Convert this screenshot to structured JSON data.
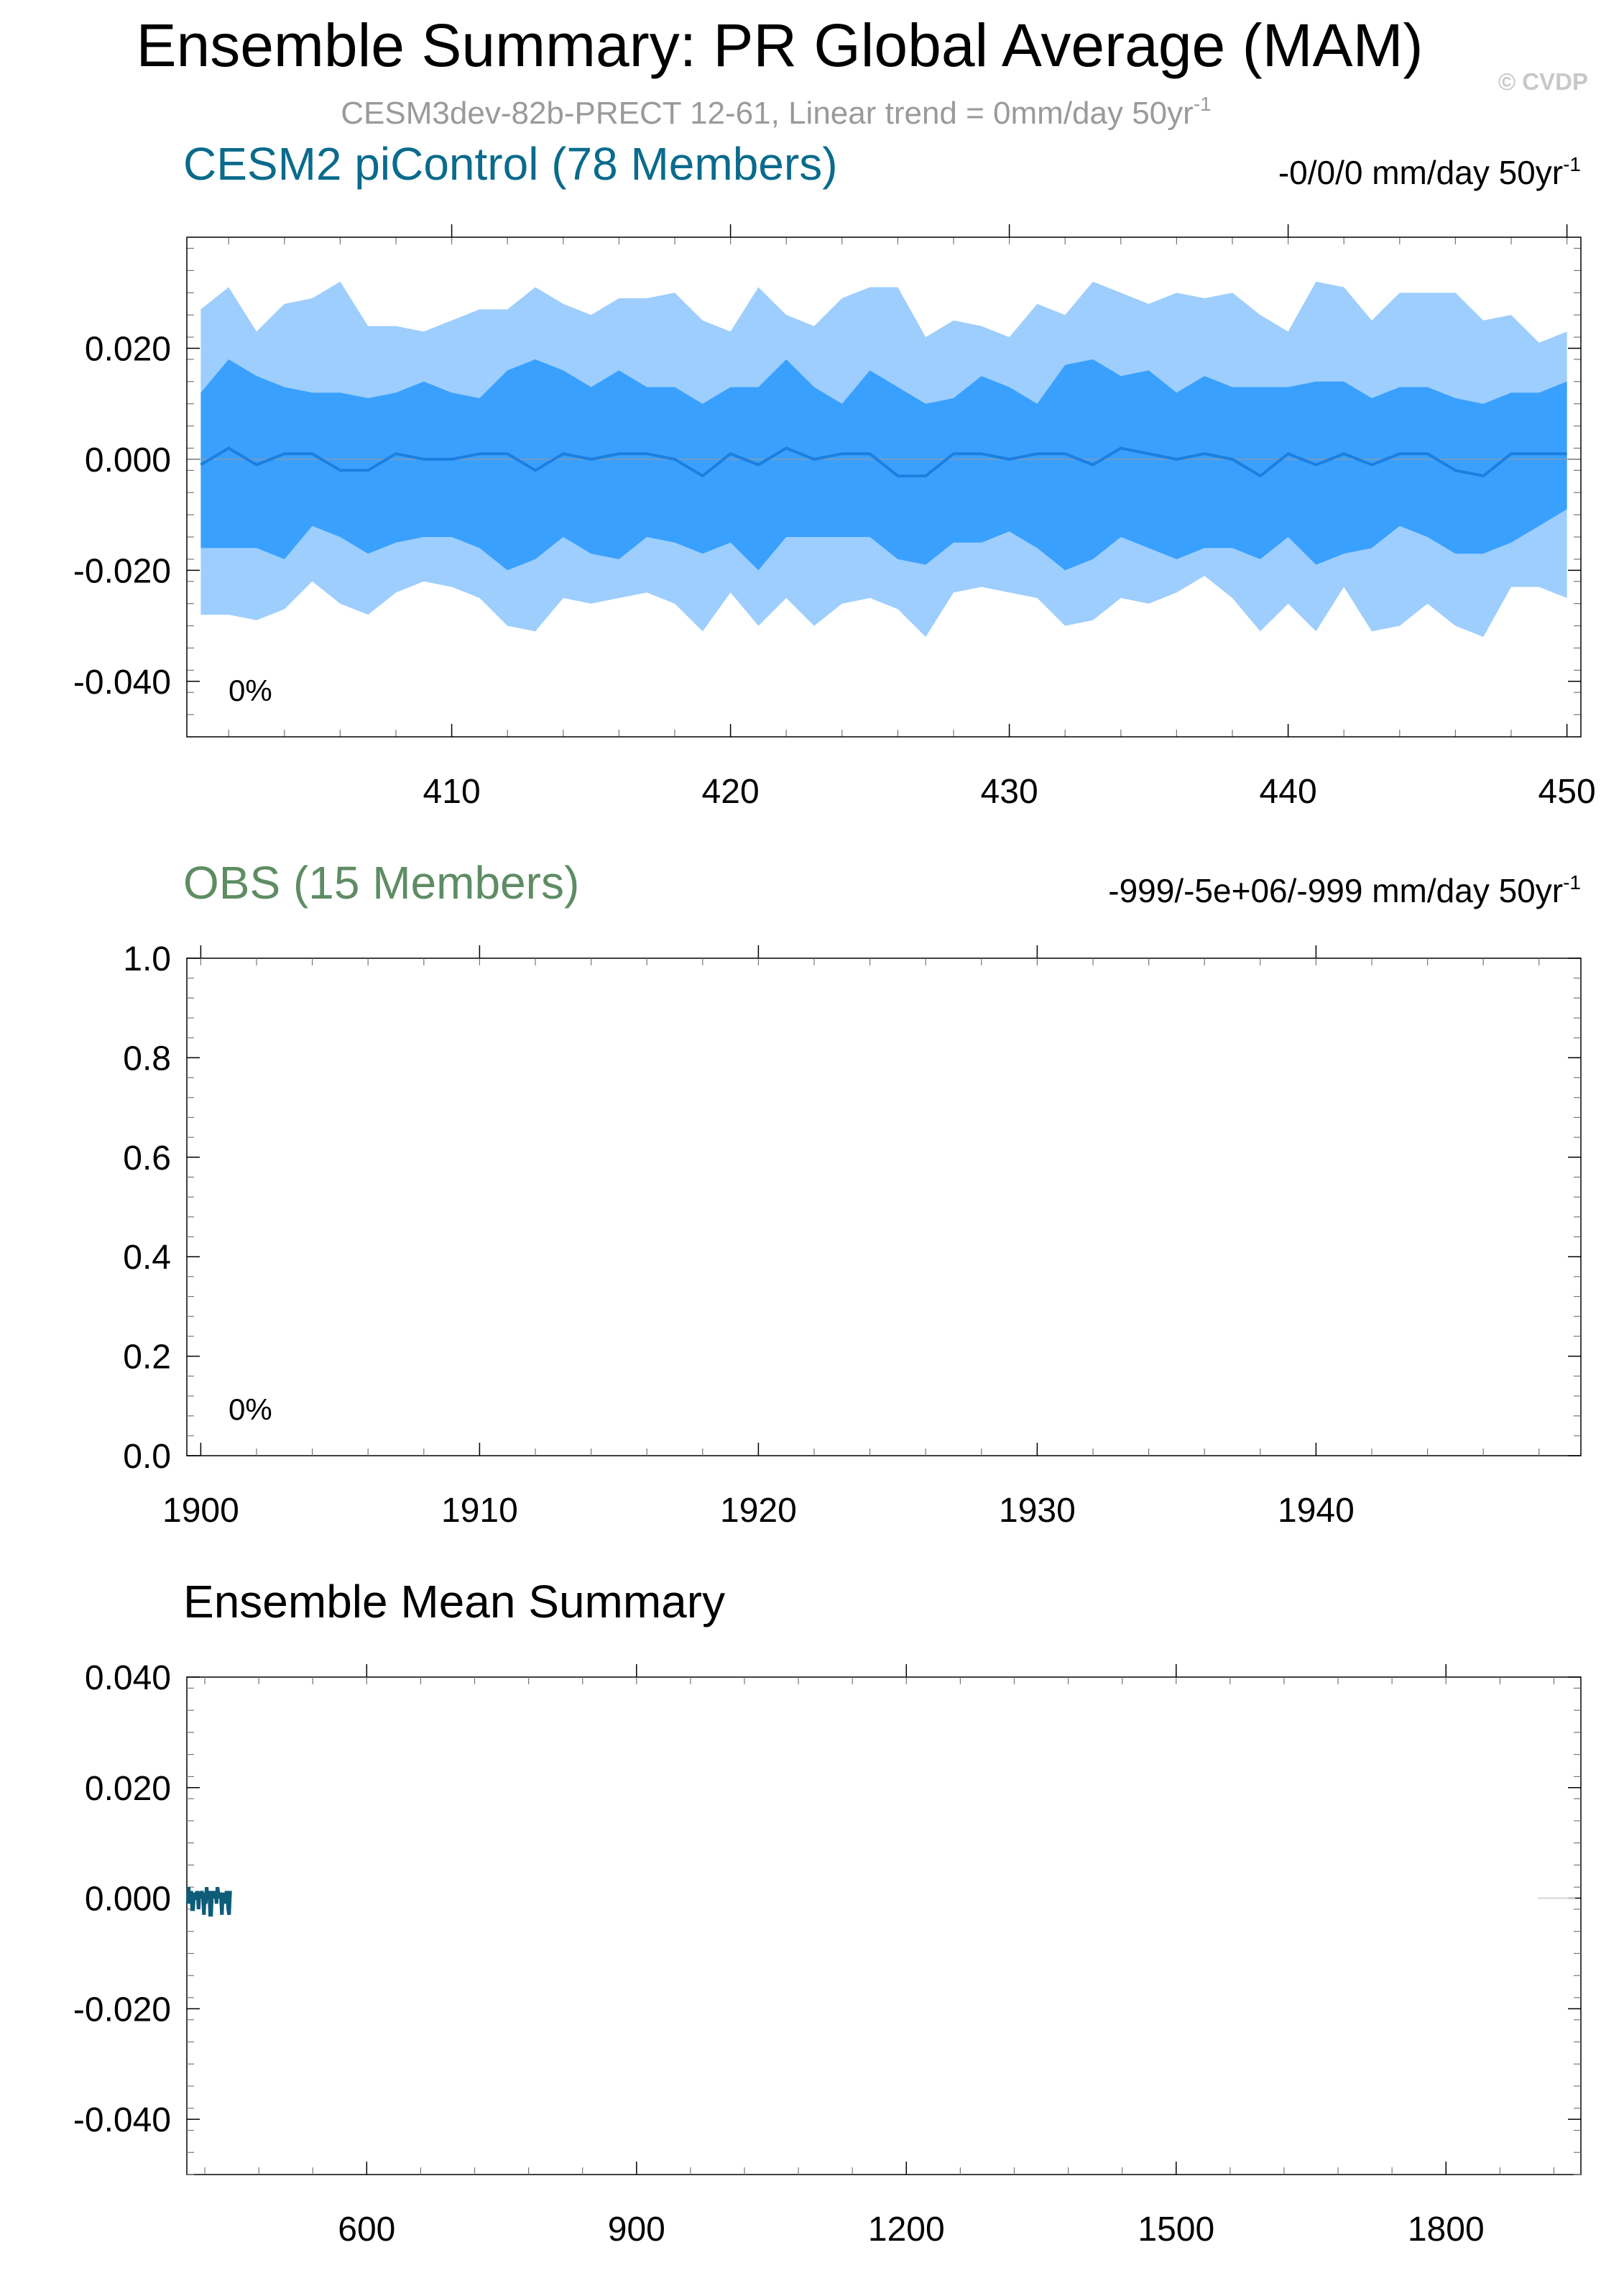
{
  "title": "Ensemble Summary: PR Global Average (MAM)",
  "subtitle": "CESM3dev-82b-PRECT 12-61, Linear trend = 0mm/day 50yr",
  "subtitle_sup": "-1",
  "watermark": "© CVDP",
  "colors": {
    "cesm_title": "#0a6b8c",
    "obs_title": "#5e8c63",
    "band_outer": "#9dcefd",
    "band_inner": "#3aa0fd",
    "mean_line": "#1c7fe0",
    "summary_line": "#0d5c78",
    "axis": "#000000"
  },
  "chart_data": [
    {
      "type": "area",
      "name": "cesm2-picontrol",
      "title": "CESM2 piControl (78 Members)",
      "trend_text": "-0/0/0 mm/day 50yr",
      "trend_sup": "-1",
      "percent_label": "0%",
      "xlim": [
        400.5,
        450.5
      ],
      "ylim": [
        -0.05,
        0.04
      ],
      "xticks": [
        410,
        420,
        430,
        440,
        450
      ],
      "xtick_labels": [
        "410",
        "420",
        "430",
        "440",
        "450"
      ],
      "yticks": [
        0.02,
        0.0,
        -0.02,
        -0.04
      ],
      "ytick_labels": [
        "0.020",
        "0.000",
        "-0.020",
        "-0.040"
      ],
      "x_start": 401,
      "x_end": 450,
      "max": [
        0.027,
        0.031,
        0.023,
        0.028,
        0.029,
        0.032,
        0.024,
        0.024,
        0.023,
        0.025,
        0.027,
        0.027,
        0.031,
        0.028,
        0.026,
        0.029,
        0.029,
        0.03,
        0.025,
        0.023,
        0.031,
        0.026,
        0.024,
        0.029,
        0.031,
        0.031,
        0.022,
        0.025,
        0.024,
        0.022,
        0.028,
        0.026,
        0.032,
        0.03,
        0.028,
        0.03,
        0.029,
        0.03,
        0.026,
        0.023,
        0.032,
        0.031,
        0.025,
        0.03,
        0.03,
        0.03,
        0.025,
        0.026,
        0.021,
        0.023
      ],
      "p90": [
        0.012,
        0.018,
        0.015,
        0.013,
        0.012,
        0.012,
        0.011,
        0.012,
        0.014,
        0.012,
        0.011,
        0.016,
        0.018,
        0.016,
        0.013,
        0.016,
        0.013,
        0.013,
        0.01,
        0.013,
        0.013,
        0.018,
        0.013,
        0.01,
        0.016,
        0.013,
        0.01,
        0.011,
        0.015,
        0.013,
        0.01,
        0.017,
        0.018,
        0.015,
        0.016,
        0.012,
        0.015,
        0.013,
        0.013,
        0.013,
        0.014,
        0.014,
        0.011,
        0.013,
        0.013,
        0.011,
        0.01,
        0.012,
        0.012,
        0.014
      ],
      "mean": [
        -0.001,
        0.002,
        -0.001,
        0.001,
        0.001,
        -0.002,
        -0.002,
        0.001,
        0.0,
        0.0,
        0.001,
        0.001,
        -0.002,
        0.001,
        0.0,
        0.001,
        0.001,
        0.0,
        -0.003,
        0.001,
        -0.001,
        0.002,
        0.0,
        0.001,
        0.001,
        -0.003,
        -0.003,
        0.001,
        0.001,
        0.0,
        0.001,
        0.001,
        -0.001,
        0.002,
        0.001,
        0.0,
        0.001,
        0.0,
        -0.003,
        0.001,
        -0.001,
        0.001,
        -0.001,
        0.001,
        0.001,
        -0.002,
        -0.003,
        0.001,
        0.001,
        0.001
      ],
      "p10": [
        -0.016,
        -0.016,
        -0.016,
        -0.018,
        -0.012,
        -0.014,
        -0.017,
        -0.015,
        -0.014,
        -0.014,
        -0.016,
        -0.02,
        -0.018,
        -0.014,
        -0.017,
        -0.018,
        -0.014,
        -0.015,
        -0.017,
        -0.015,
        -0.02,
        -0.014,
        -0.014,
        -0.014,
        -0.014,
        -0.018,
        -0.019,
        -0.015,
        -0.015,
        -0.013,
        -0.016,
        -0.02,
        -0.018,
        -0.014,
        -0.016,
        -0.018,
        -0.016,
        -0.016,
        -0.018,
        -0.014,
        -0.019,
        -0.017,
        -0.016,
        -0.012,
        -0.014,
        -0.017,
        -0.017,
        -0.015,
        -0.012,
        -0.009
      ],
      "min": [
        -0.028,
        -0.028,
        -0.029,
        -0.027,
        -0.022,
        -0.026,
        -0.028,
        -0.024,
        -0.022,
        -0.023,
        -0.025,
        -0.03,
        -0.031,
        -0.025,
        -0.026,
        -0.025,
        -0.024,
        -0.026,
        -0.031,
        -0.024,
        -0.03,
        -0.025,
        -0.03,
        -0.026,
        -0.025,
        -0.027,
        -0.032,
        -0.024,
        -0.023,
        -0.024,
        -0.025,
        -0.03,
        -0.029,
        -0.025,
        -0.026,
        -0.024,
        -0.021,
        -0.025,
        -0.031,
        -0.026,
        -0.031,
        -0.023,
        -0.031,
        -0.03,
        -0.026,
        -0.03,
        -0.032,
        -0.023,
        -0.023,
        -0.025
      ]
    },
    {
      "type": "area",
      "name": "obs",
      "title": "OBS (15 Members)",
      "trend_text": "-999/-5e+06/-999 mm/day 50yr",
      "trend_sup": "-1",
      "percent_label": "0%",
      "xlim": [
        1899.5,
        1949.5
      ],
      "ylim": [
        0,
        1
      ],
      "xticks": [
        1900,
        1910,
        1920,
        1930,
        1940
      ],
      "xtick_labels": [
        "1900",
        "1910",
        "1920",
        "1930",
        "1940"
      ],
      "yticks": [
        1.0,
        0.8,
        0.6,
        0.4,
        0.2,
        0.0
      ],
      "ytick_labels": [
        "1.0",
        "0.8",
        "0.6",
        "0.4",
        "0.2",
        "0.0"
      ]
    },
    {
      "type": "line",
      "name": "ensemble-mean-summary",
      "title": "Ensemble Mean Summary",
      "xlim": [
        400,
        1950
      ],
      "ylim": [
        -0.05,
        0.04
      ],
      "xticks": [
        600,
        900,
        1200,
        1500,
        1800
      ],
      "xtick_labels": [
        "600",
        "900",
        "1200",
        "1500",
        "1800"
      ],
      "yticks": [
        0.04,
        0.02,
        0.0,
        -0.02,
        -0.04
      ],
      "ytick_labels": [
        "0.040",
        "0.020",
        "0.000",
        "-0.020",
        "-0.040"
      ],
      "x_start": 401,
      "series_from": "cesm2-picontrol.mean"
    }
  ]
}
